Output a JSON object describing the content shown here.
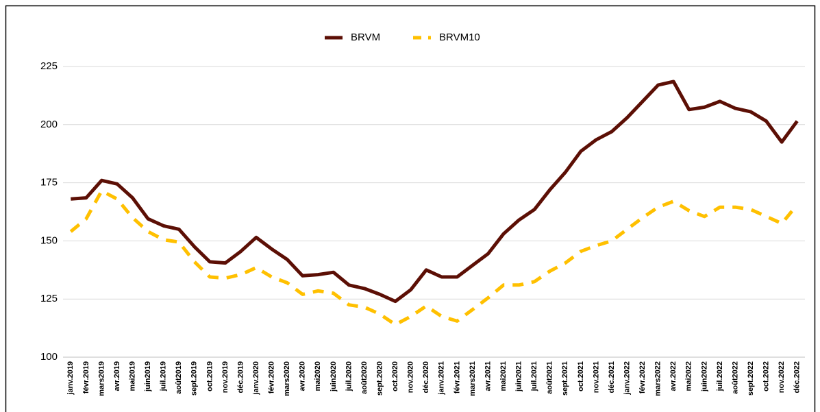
{
  "chart_data": {
    "type": "line",
    "categories": [
      "janv.2019",
      "févr.2019",
      "mars2019",
      "avr.2019",
      "mai2019",
      "juin2019",
      "juil.2019",
      "août2019",
      "sept.2019",
      "oct.2019",
      "nov.2019",
      "déc.2019",
      "janv.2020",
      "févr.2020",
      "mars2020",
      "avr.2020",
      "mai2020",
      "juin2020",
      "juil.2020",
      "août2020",
      "sept.2020",
      "oct.2020",
      "nov.2020",
      "déc.2020",
      "janv.2021",
      "févr.2021",
      "mars2021",
      "avr.2021",
      "mai2021",
      "juin2021",
      "juil.2021",
      "août2021",
      "sept.2021",
      "oct.2021",
      "nov.2021",
      "déc.2021",
      "janv.2022",
      "févr.2022",
      "mars2022",
      "avr.2022",
      "mai2022",
      "juin2022",
      "juil.2022",
      "août2022",
      "sept.2022",
      "oct.2022",
      "nov.2022",
      "déc.2022"
    ],
    "series": [
      {
        "name": "BRVM",
        "color": "#5c0f05",
        "dashed": false,
        "values": [
          168,
          168.5,
          176,
          174.5,
          168.5,
          159.5,
          156.5,
          155,
          147.5,
          141,
          140.5,
          145.5,
          151.5,
          146.5,
          142,
          135,
          135.5,
          136.5,
          131,
          129.5,
          127,
          124,
          129,
          137.5,
          134.5,
          134.5,
          139.5,
          144.5,
          153,
          159,
          163.5,
          172,
          179.5,
          188.5,
          193.5,
          197,
          203,
          210,
          217,
          218.5,
          206.5,
          207.5,
          210,
          207,
          205.5,
          201.5,
          192.5,
          201.5
        ]
      },
      {
        "name": "BRVM10",
        "color": "#ffc000",
        "dashed": true,
        "values": [
          154,
          159.5,
          171.5,
          168,
          160,
          154,
          150.5,
          149.5,
          141,
          134.5,
          134,
          135.5,
          138.5,
          134.5,
          132,
          127,
          128.5,
          127.5,
          122.5,
          121.5,
          118.5,
          114,
          117.5,
          122,
          117.5,
          115.5,
          120.5,
          125.5,
          131,
          131,
          132.5,
          137,
          140.5,
          145.5,
          148,
          150,
          155,
          160,
          164.5,
          167,
          163,
          160.5,
          164.5,
          164.5,
          163.5,
          160.5,
          157.5,
          165.5
        ]
      }
    ],
    "ylim": [
      100,
      225
    ],
    "yticks": [
      100,
      125,
      150,
      175,
      200,
      225
    ],
    "grid": true,
    "legend": "top"
  }
}
